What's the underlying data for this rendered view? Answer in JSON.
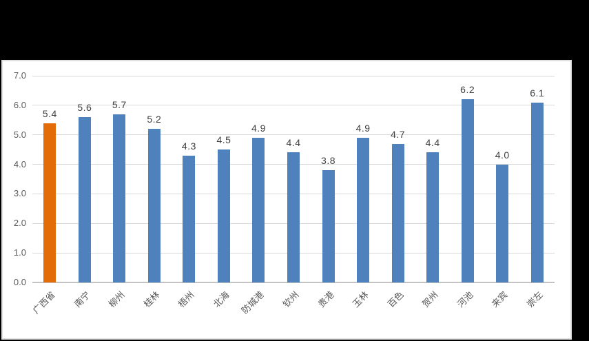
{
  "canvas": {
    "background": "#000000"
  },
  "chart_data": {
    "type": "bar",
    "title": "",
    "xlabel": "",
    "ylabel": "",
    "categories": [
      "广西省",
      "南宁",
      "柳州",
      "桂林",
      "梧州",
      "北海",
      "防城港",
      "钦州",
      "贵港",
      "玉林",
      "百色",
      "贺州",
      "河池",
      "来宾",
      "崇左"
    ],
    "values": [
      5.4,
      5.6,
      5.7,
      5.2,
      4.3,
      4.5,
      4.9,
      4.4,
      3.8,
      4.9,
      4.7,
      4.4,
      6.2,
      4.0,
      6.1
    ],
    "data_labels": [
      "5.4",
      "5.6",
      "5.7",
      "5.2",
      "4.3",
      "4.5",
      "4.9",
      "4.4",
      "3.8",
      "4.9",
      "4.7",
      "4.4",
      "6.2",
      "4.0",
      "6.1"
    ],
    "highlight_index": 0,
    "ylim": [
      0.0,
      7.0
    ],
    "y_ticks": [
      "0.0",
      "1.0",
      "2.0",
      "3.0",
      "4.0",
      "5.0",
      "6.0",
      "7.0"
    ],
    "grid": true,
    "legend_position": "none",
    "x_tick_rotation_deg": 45
  },
  "colors": {
    "bar_default": "#4F81BD",
    "bar_highlight": "#E36C09",
    "gridline": "#D9D9D9",
    "axis_line": "#C3C3C3",
    "tick_label": "#595959",
    "data_label": "#404040",
    "panel_background": "#FFFFFF",
    "panel_border": "#E2E2E2",
    "canvas_background": "#000000"
  }
}
